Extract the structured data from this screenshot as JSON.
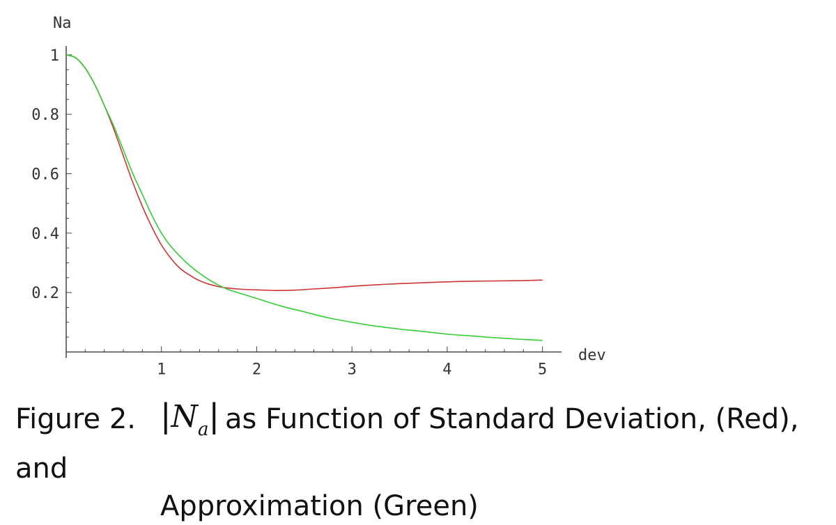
{
  "chart_data": {
    "type": "line",
    "xlabel": "dev",
    "ylabel": "Na",
    "xlim": [
      0,
      5.2
    ],
    "ylim": [
      -0.02,
      1.03
    ],
    "xticks": [
      1,
      2,
      3,
      4,
      5
    ],
    "yticks": [
      0.2,
      0.4,
      0.6,
      0.8,
      1
    ],
    "ytick_labels": [
      "0.2",
      "0.4",
      "0.6",
      "0.8",
      "1"
    ],
    "grid": false,
    "series": [
      {
        "color": "#cc3333",
        "x": [
          0,
          0.1,
          0.2,
          0.3,
          0.4,
          0.5,
          0.6,
          0.7,
          0.8,
          0.9,
          1.0,
          1.1,
          1.2,
          1.3,
          1.4,
          1.5,
          1.6,
          1.7,
          1.8,
          1.9,
          2.0,
          2.2,
          2.4,
          2.6,
          2.8,
          3.0,
          3.25,
          3.5,
          3.75,
          4.0,
          4.25,
          4.5,
          4.75,
          5.0
        ],
        "y": [
          1.0,
          0.99,
          0.955,
          0.9,
          0.83,
          0.75,
          0.66,
          0.57,
          0.49,
          0.42,
          0.36,
          0.315,
          0.28,
          0.258,
          0.24,
          0.228,
          0.22,
          0.215,
          0.212,
          0.21,
          0.209,
          0.207,
          0.208,
          0.212,
          0.216,
          0.221,
          0.226,
          0.23,
          0.233,
          0.236,
          0.238,
          0.239,
          0.24,
          0.242
        ]
      },
      {
        "color": "#33cc33",
        "x": [
          0,
          0.1,
          0.2,
          0.3,
          0.4,
          0.5,
          0.6,
          0.7,
          0.8,
          0.9,
          1.0,
          1.1,
          1.2,
          1.3,
          1.4,
          1.5,
          1.6,
          1.7,
          1.8,
          1.9,
          2.0,
          2.25,
          2.5,
          2.75,
          3.0,
          3.25,
          3.5,
          3.75,
          4.0,
          4.25,
          4.5,
          4.75,
          5.0
        ],
        "y": [
          1.0,
          0.99,
          0.955,
          0.9,
          0.83,
          0.76,
          0.68,
          0.6,
          0.53,
          0.46,
          0.4,
          0.355,
          0.32,
          0.29,
          0.265,
          0.243,
          0.225,
          0.21,
          0.2,
          0.19,
          0.18,
          0.155,
          0.135,
          0.115,
          0.1,
          0.087,
          0.077,
          0.069,
          0.06,
          0.054,
          0.048,
          0.043,
          0.039
        ]
      }
    ]
  },
  "caption": {
    "prefix": "Figure 2.",
    "symbol_bars": "|",
    "symbol_main": "N",
    "symbol_sub": "a",
    "line1": "as Function of Standard Deviation, (Red), and",
    "line2": "Approximation (Green)"
  }
}
